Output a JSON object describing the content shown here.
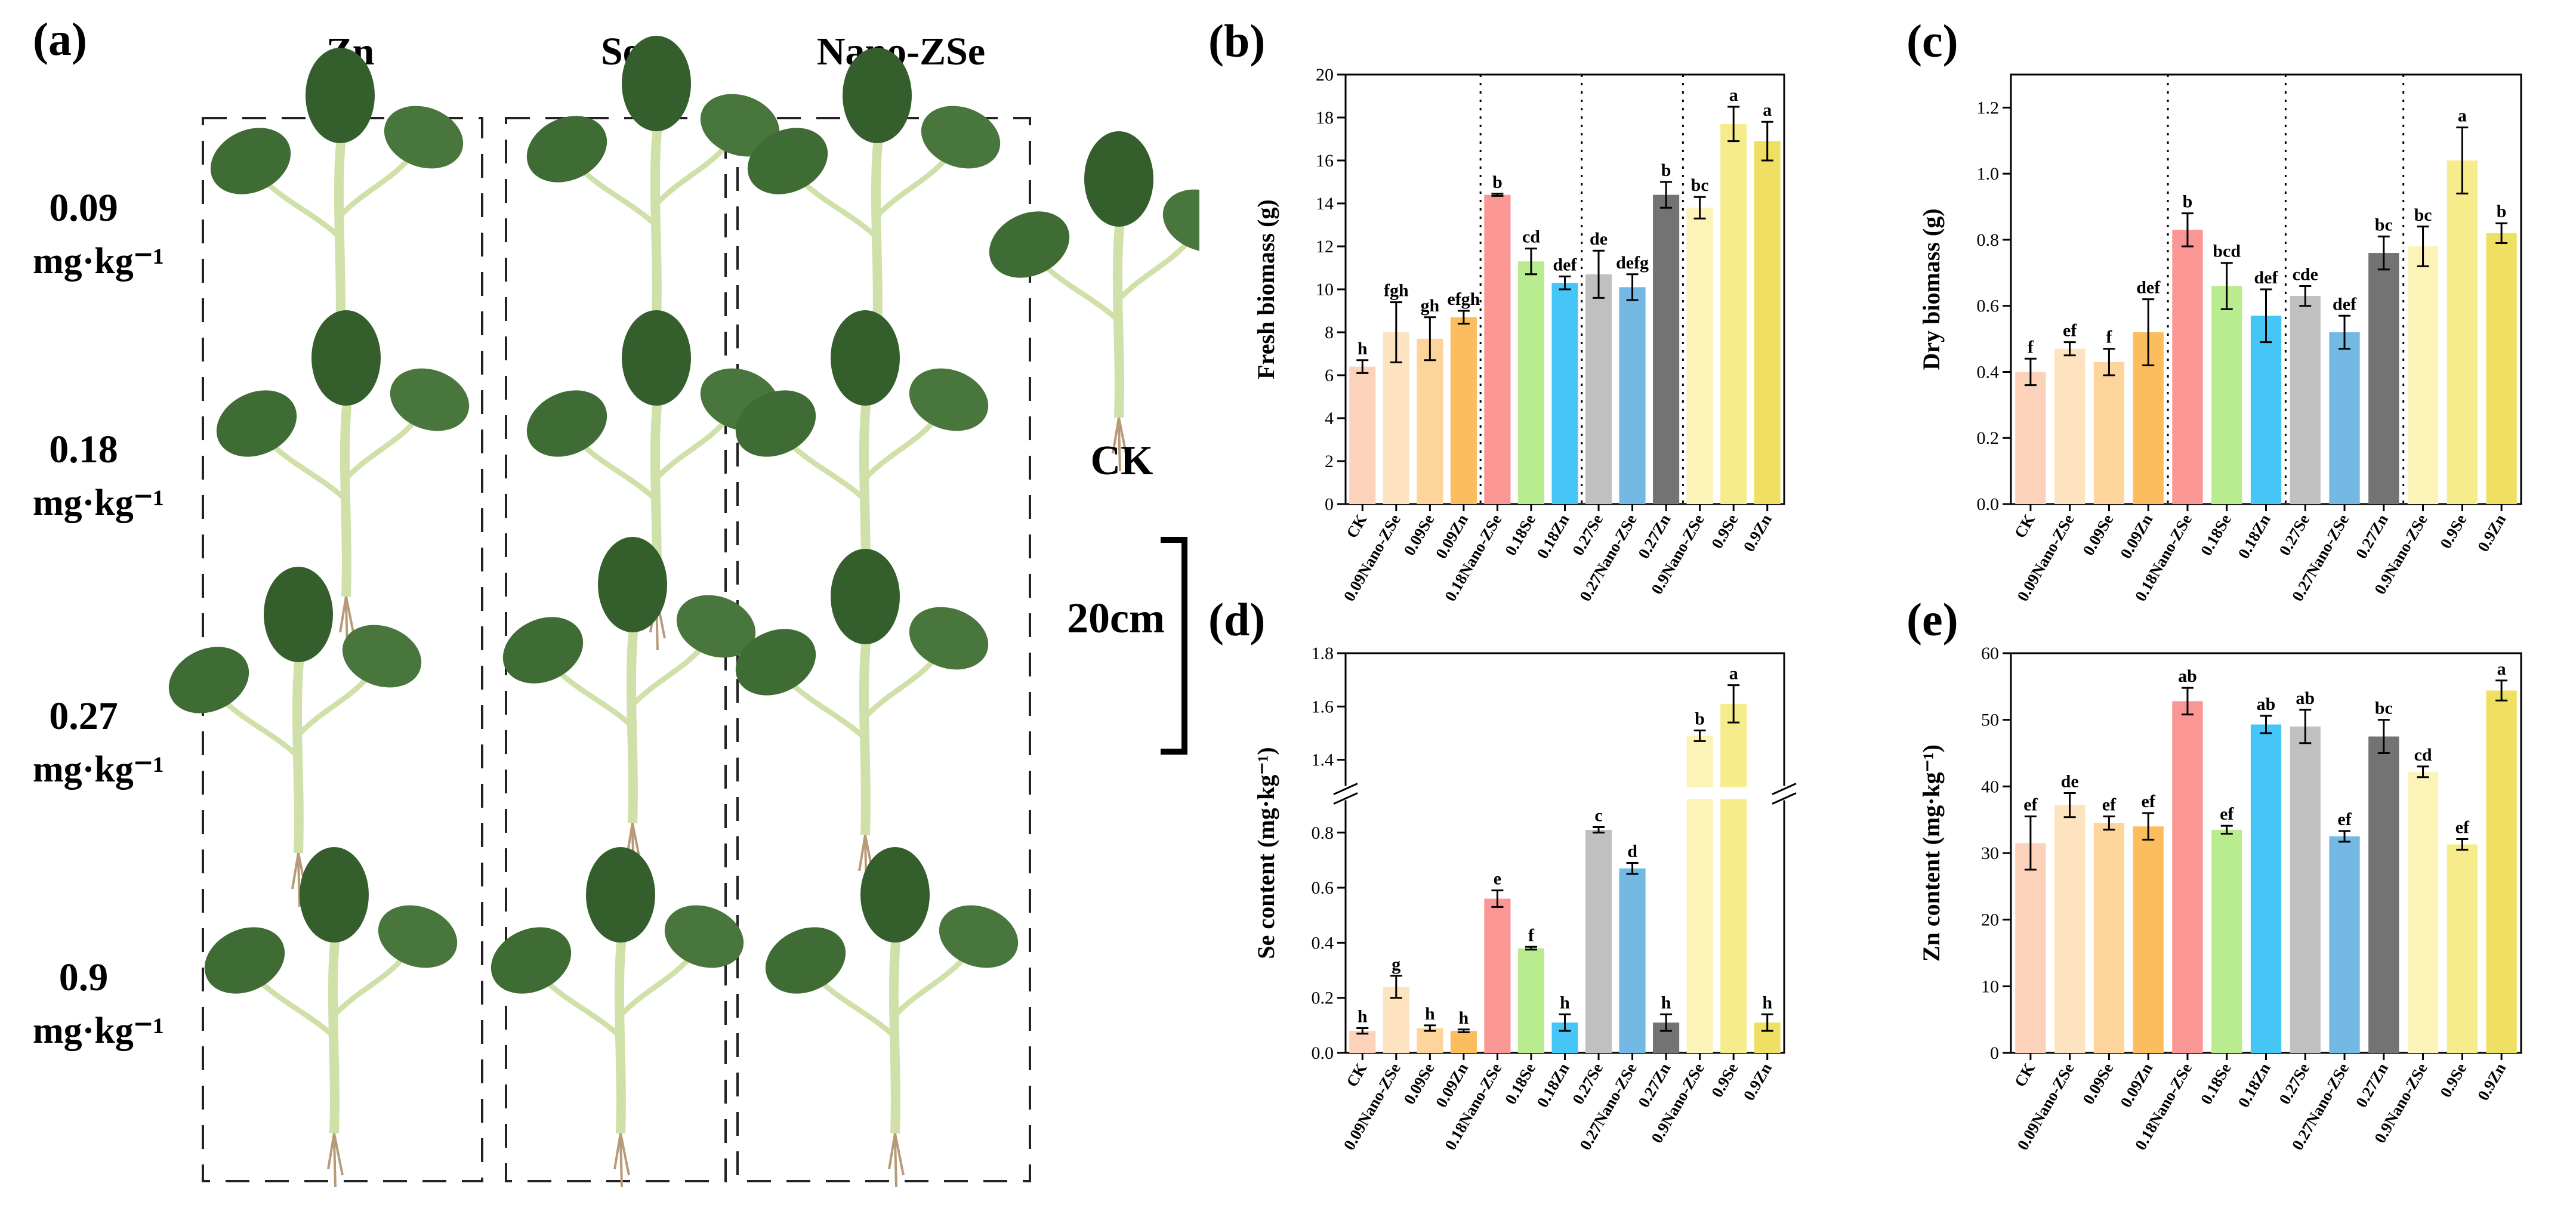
{
  "panel_a": {
    "label": "(a)",
    "columns": [
      "Zn",
      "Se",
      "Nano-ZSe"
    ],
    "rows": [
      {
        "conc": "0.09",
        "unit": "mg·kg⁻¹"
      },
      {
        "conc": "0.18",
        "unit": "mg·kg⁻¹"
      },
      {
        "conc": "0.27",
        "unit": "mg·kg⁻¹"
      },
      {
        "conc": "0.9",
        "unit": "mg·kg⁻¹"
      }
    ],
    "control_label": "CK",
    "scale_bar_label": "20cm"
  },
  "colors": [
    "#fdd2ba",
    "#fde3c0",
    "#fdd59c",
    "#fbbd5e",
    "#fa9694",
    "#b9ec8e",
    "#46c6f6",
    "#c0c0c0",
    "#74b8e4",
    "#737373",
    "#fcf3b8",
    "#f6ec8c",
    "#efe064"
  ],
  "chart_data": [
    {
      "id": "b",
      "panel_label": "(b)",
      "type": "bar",
      "ylabel": "Fresh biomass (g)",
      "categories": [
        "CK",
        "0.09Nano-ZSe",
        "0.09Se",
        "0.09Zn",
        "0.18Nano-ZSe",
        "0.18Se",
        "0.18Zn",
        "0.27Se",
        "0.27Nano-ZSe",
        "0.27Zn",
        "0.9Nano-ZSe",
        "0.9Se",
        "0.9Zn"
      ],
      "values": [
        6.4,
        8.0,
        7.7,
        8.7,
        14.4,
        11.3,
        10.3,
        10.7,
        10.1,
        14.4,
        13.8,
        17.7,
        16.9
      ],
      "errors": [
        0.3,
        1.4,
        1.0,
        0.3,
        0.05,
        0.6,
        0.3,
        1.1,
        0.6,
        0.6,
        0.5,
        0.8,
        0.9
      ],
      "letters": [
        "h",
        "fgh",
        "gh",
        "efgh",
        "b",
        "cd",
        "def",
        "de",
        "defg",
        "b",
        "bc",
        "a",
        "a"
      ],
      "ylim": [
        0,
        20
      ],
      "yticks": [
        "0",
        "2",
        "4",
        "6",
        "8",
        "10",
        "12",
        "14",
        "16",
        "18",
        "20"
      ]
    },
    {
      "id": "c",
      "panel_label": "(c)",
      "type": "bar",
      "ylabel": "Dry biomass (g)",
      "categories": [
        "CK",
        "0.09Nano-ZSe",
        "0.09Se",
        "0.09Zn",
        "0.18Nano-ZSe",
        "0.18Se",
        "0.18Zn",
        "0.27Se",
        "0.27Nano-ZSe",
        "0.27Zn",
        "0.9Nano-ZSe",
        "0.9Se",
        "0.9Zn"
      ],
      "values": [
        0.4,
        0.47,
        0.43,
        0.52,
        0.83,
        0.66,
        0.57,
        0.63,
        0.52,
        0.76,
        0.78,
        1.04,
        0.82
      ],
      "errors": [
        0.04,
        0.02,
        0.04,
        0.1,
        0.05,
        0.07,
        0.08,
        0.03,
        0.05,
        0.05,
        0.06,
        0.1,
        0.03
      ],
      "letters": [
        "f",
        "ef",
        "f",
        "def",
        "b",
        "bcd",
        "def",
        "cde",
        "def",
        "bc",
        "bc",
        "a",
        "b"
      ],
      "ylim": [
        0,
        1.3
      ],
      "yticks": [
        "0.0",
        "0.2",
        "0.4",
        "0.6",
        "0.8",
        "1.0",
        "1.2"
      ]
    },
    {
      "id": "d",
      "panel_label": "(d)",
      "type": "bar",
      "ylabel": "Se content (mg·kg⁻¹)",
      "categories": [
        "CK",
        "0.09Nano-ZSe",
        "0.09Se",
        "0.09Zn",
        "0.18Nano-ZSe",
        "0.18Se",
        "0.18Zn",
        "0.27Se",
        "0.27Nano-ZSe",
        "0.27Zn",
        "0.9Nano-ZSe",
        "0.9Se",
        "0.9Zn"
      ],
      "values": [
        0.08,
        0.24,
        0.09,
        0.08,
        0.56,
        0.38,
        0.11,
        0.81,
        0.67,
        0.11,
        1.49,
        1.61,
        0.11
      ],
      "errors": [
        0.01,
        0.04,
        0.01,
        0.005,
        0.03,
        0.005,
        0.03,
        0.01,
        0.02,
        0.03,
        0.02,
        0.07,
        0.03
      ],
      "letters": [
        "h",
        "g",
        "h",
        "h",
        "e",
        "f",
        "h",
        "c",
        "d",
        "h",
        "b",
        "a",
        "h"
      ],
      "ylim": [
        0,
        1.8
      ],
      "axis_break": [
        0.9,
        1.32
      ],
      "yticks": [
        "0.0",
        "0.2",
        "0.4",
        "0.6",
        "0.8",
        "1.4",
        "1.6",
        "1.8"
      ]
    },
    {
      "id": "e",
      "panel_label": "(e)",
      "type": "bar",
      "ylabel": "Zn content (mg·kg⁻¹)",
      "categories": [
        "CK",
        "0.09Nano-ZSe",
        "0.09Se",
        "0.09Zn",
        "0.18Nano-ZSe",
        "0.18Se",
        "0.18Zn",
        "0.27Se",
        "0.27Nano-ZSe",
        "0.27Zn",
        "0.9Nano-ZSe",
        "0.9Se",
        "0.9Zn"
      ],
      "values": [
        31.5,
        37.2,
        34.5,
        34.0,
        52.8,
        33.5,
        49.3,
        49.0,
        32.5,
        47.5,
        42.2,
        31.3,
        54.4
      ],
      "errors": [
        4.0,
        1.8,
        1.0,
        2.0,
        2.0,
        0.6,
        1.3,
        2.5,
        0.8,
        2.5,
        0.8,
        0.8,
        1.5
      ],
      "letters": [
        "ef",
        "de",
        "ef",
        "ef",
        "ab",
        "ef",
        "ab",
        "ab",
        "ef",
        "bc",
        "cd",
        "ef",
        "a"
      ],
      "ylim": [
        0,
        60
      ],
      "yticks": [
        "0",
        "10",
        "20",
        "30",
        "40",
        "50",
        "60"
      ]
    }
  ]
}
